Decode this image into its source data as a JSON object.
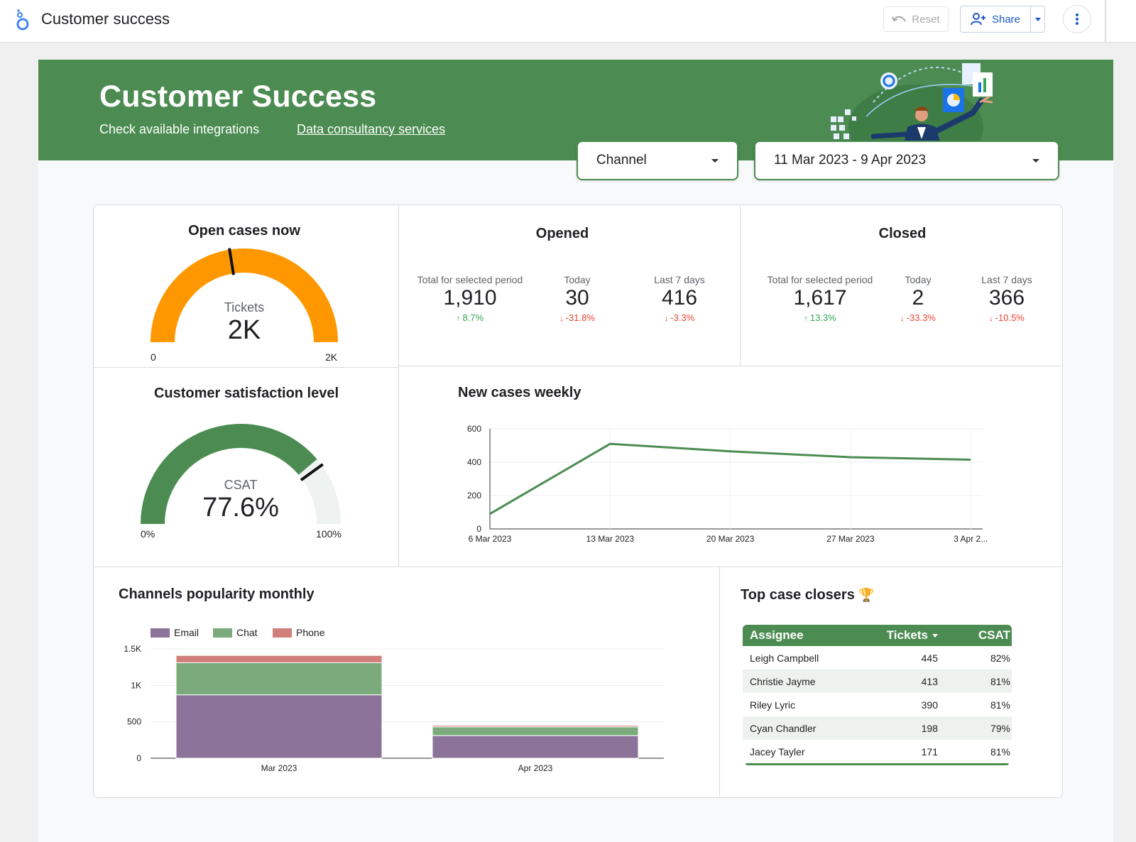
{
  "app": {
    "title": "Customer success",
    "reset_label": "Reset",
    "share_label": "Share"
  },
  "banner": {
    "title": "Customer Success",
    "link_integrations": "Check available integrations",
    "link_consultancy": "Data consultancy services"
  },
  "filters": {
    "channel": "Channel",
    "date_range": "11 Mar 2023 - 9 Apr 2023"
  },
  "open_cases": {
    "title": "Open cases now",
    "label": "Tickets",
    "value": "2K",
    "min": "0",
    "max": "2K",
    "fill_fraction": 1.0,
    "target_fraction": 0.45
  },
  "opened": {
    "title": "Opened",
    "kpis": [
      {
        "label": "Total for selected period",
        "value": "1,910",
        "delta": "8.7%",
        "direction": "up"
      },
      {
        "label": "Today",
        "value": "30",
        "delta": "-31.8%",
        "direction": "down"
      },
      {
        "label": "Last 7 days",
        "value": "416",
        "delta": "-3.3%",
        "direction": "down"
      }
    ]
  },
  "closed": {
    "title": "Closed",
    "kpis": [
      {
        "label": "Total for selected period",
        "value": "1,617",
        "delta": "13.3%",
        "direction": "up"
      },
      {
        "label": "Today",
        "value": "2",
        "delta": "-33.3%",
        "direction": "down"
      },
      {
        "label": "Last 7 days",
        "value": "366",
        "delta": "-10.5%",
        "direction": "down"
      }
    ]
  },
  "csat": {
    "title": "Customer satisfaction level",
    "label": "CSAT",
    "value": "77.6%",
    "min": "0%",
    "max": "100%",
    "fill_fraction": 0.776,
    "target_fraction": 0.8
  },
  "colors": {
    "green": "#4c8c52",
    "orange": "#ff9800",
    "email": "#8b7399",
    "chat": "#7bab7c",
    "phone": "#d17f7a",
    "up": "#34a853",
    "down": "#ea4335"
  },
  "chart_data": [
    {
      "type": "line",
      "title": "New cases weekly",
      "x": [
        "6 Mar 2023",
        "13 Mar 2023",
        "20 Mar 2023",
        "27 Mar 2023",
        "3 Apr 2..."
      ],
      "series": [
        {
          "values": [
            90,
            510,
            465,
            430,
            415
          ]
        }
      ],
      "ylim": [
        0,
        600
      ],
      "yticks": [
        0,
        200,
        400,
        600
      ],
      "grid": true
    },
    {
      "type": "bar",
      "stacked": true,
      "title": "Channels popularity monthly",
      "categories": [
        "Mar 2023",
        "Apr 2023"
      ],
      "series": [
        {
          "name": "Email",
          "values": [
            870,
            310
          ]
        },
        {
          "name": "Chat",
          "values": [
            440,
            120
          ]
        },
        {
          "name": "Phone",
          "values": [
            100,
            20
          ]
        }
      ],
      "ylim": [
        0,
        1500
      ],
      "yticks": [
        "0",
        "500",
        "1K",
        "1.5K"
      ],
      "legend": "top-left",
      "grid": true
    }
  ],
  "top_closers": {
    "title": "Top case closers",
    "trophy": "🏆",
    "columns": [
      "Assignee",
      "Tickets",
      "CSAT"
    ],
    "rows": [
      {
        "name": "Leigh Campbell",
        "tickets": "445",
        "csat": "82%"
      },
      {
        "name": "Christie Jayme",
        "tickets": "413",
        "csat": "81%"
      },
      {
        "name": "Riley Lyric",
        "tickets": "390",
        "csat": "81%"
      },
      {
        "name": "Cyan Chandler",
        "tickets": "198",
        "csat": "79%"
      },
      {
        "name": "Jacey Tayler",
        "tickets": "171",
        "csat": "81%"
      }
    ]
  }
}
